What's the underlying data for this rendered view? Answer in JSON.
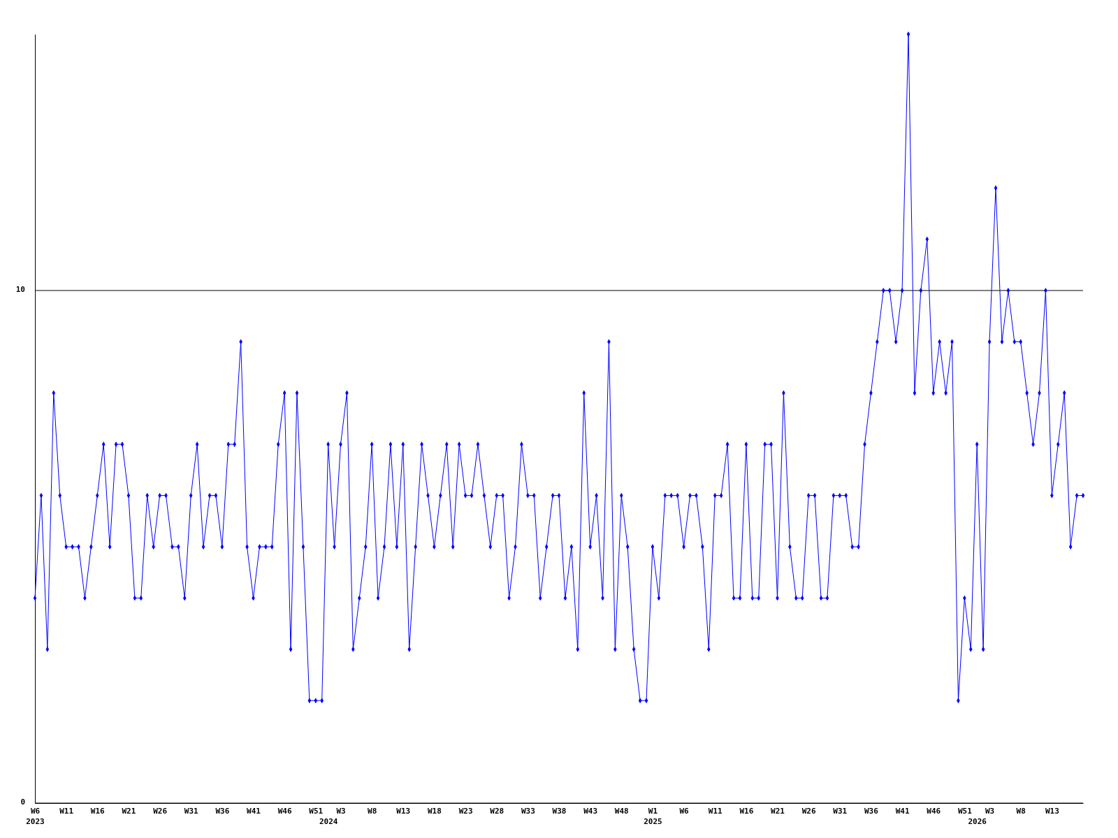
{
  "chart_data": {
    "type": "line",
    "categories": [
      "W6\n2023",
      null,
      null,
      null,
      null,
      "W11",
      null,
      null,
      null,
      null,
      "W16",
      null,
      null,
      null,
      null,
      "W21",
      null,
      null,
      null,
      null,
      "W26",
      null,
      null,
      null,
      null,
      "W31",
      null,
      null,
      null,
      null,
      "W36",
      null,
      null,
      null,
      null,
      "W41",
      null,
      null,
      null,
      null,
      "W46",
      null,
      null,
      null,
      null,
      "W51",
      null,
      "\n2024",
      null,
      "W3",
      null,
      null,
      null,
      null,
      "W8",
      null,
      null,
      null,
      null,
      "W13",
      null,
      null,
      null,
      null,
      "W18",
      null,
      null,
      null,
      null,
      "W23",
      null,
      null,
      null,
      null,
      "W28",
      null,
      null,
      null,
      null,
      "W33",
      null,
      null,
      null,
      null,
      "W38",
      null,
      null,
      null,
      null,
      "W43",
      null,
      null,
      null,
      null,
      "W48",
      null,
      null,
      null,
      null,
      "W1\n2025",
      null,
      null,
      null,
      null,
      "W6",
      null,
      null,
      null,
      null,
      "W11",
      null,
      null,
      null,
      null,
      "W16",
      null,
      null,
      null,
      null,
      "W21",
      null,
      null,
      null,
      null,
      "W26",
      null,
      null,
      null,
      null,
      "W31",
      null,
      null,
      null,
      null,
      "W36",
      null,
      null,
      null,
      null,
      "W41",
      null,
      null,
      null,
      null,
      "W46",
      null,
      null,
      null,
      null,
      "W51",
      null,
      "\n2026",
      null,
      "W3",
      null,
      null,
      null,
      null,
      "W8",
      null,
      null,
      null,
      null,
      "W13",
      null,
      null,
      null,
      null,
      null
    ],
    "series": [
      {
        "color": "#0000ff",
        "values": [
          4,
          6,
          3,
          8,
          6,
          5,
          5,
          5,
          4,
          5,
          6,
          7,
          5,
          7,
          7,
          6,
          4,
          4,
          6,
          5,
          6,
          6,
          5,
          5,
          4,
          6,
          7,
          5,
          6,
          6,
          5,
          7,
          7,
          9,
          5,
          4,
          5,
          5,
          5,
          7,
          8,
          3,
          8,
          5,
          2,
          2,
          2,
          7,
          5,
          7,
          8,
          3,
          4,
          5,
          7,
          4,
          5,
          7,
          5,
          7,
          3,
          5,
          7,
          6,
          5,
          6,
          7,
          5,
          7,
          6,
          6,
          7,
          6,
          5,
          6,
          6,
          4,
          5,
          7,
          6,
          6,
          4,
          5,
          6,
          6,
          4,
          5,
          3,
          8,
          5,
          6,
          4,
          9,
          3,
          6,
          5,
          3,
          2,
          2,
          5,
          4,
          6,
          6,
          6,
          5,
          6,
          6,
          5,
          3,
          6,
          6,
          7,
          4,
          4,
          7,
          4,
          4,
          7,
          7,
          4,
          8,
          5,
          4,
          4,
          6,
          6,
          4,
          4,
          6,
          6,
          6,
          5,
          5,
          7,
          8,
          9,
          10,
          10,
          9,
          10,
          15,
          8,
          10,
          11,
          8,
          9,
          8,
          9,
          2,
          4,
          3,
          7,
          3,
          9,
          12,
          9,
          10,
          9,
          9,
          8,
          7,
          8,
          10,
          6,
          7,
          8,
          5,
          6,
          6
        ]
      }
    ],
    "ylim": [
      0,
      15
    ],
    "yticks": [
      0,
      10
    ],
    "grid": "y",
    "marker": "diamond",
    "line_style": "solid"
  }
}
